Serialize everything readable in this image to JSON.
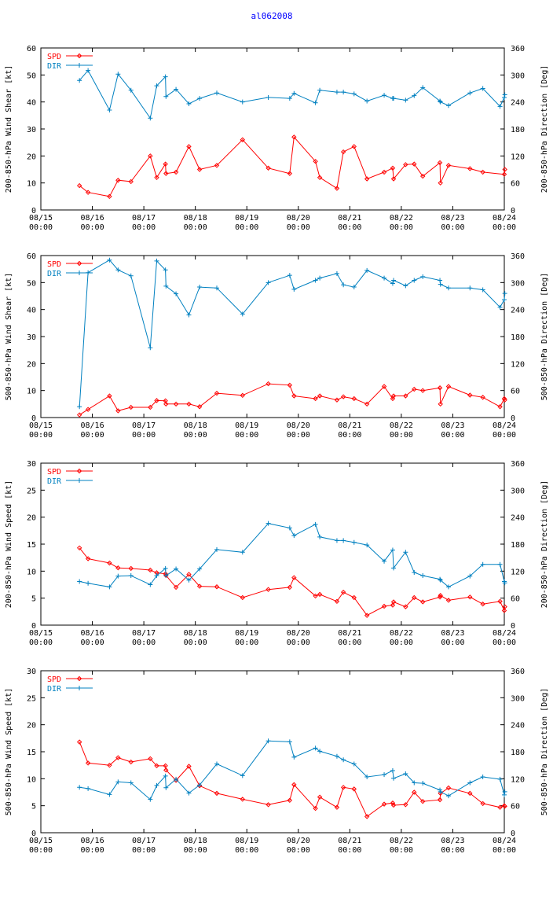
{
  "page_title": "al062008",
  "colors": {
    "spd": "#ff0000",
    "dir": "#0080c0",
    "axis": "#000000",
    "title": "#0000ff"
  },
  "legend": {
    "spd": "SPD",
    "dir": "DIR"
  },
  "x_axis": {
    "ticks": [
      0,
      1,
      2,
      3,
      4,
      5,
      6,
      7,
      8,
      9
    ],
    "tick_labels": [
      [
        "08/15",
        "00:00"
      ],
      [
        "08/16",
        "00:00"
      ],
      [
        "08/17",
        "00:00"
      ],
      [
        "08/18",
        "00:00"
      ],
      [
        "08/19",
        "00:00"
      ],
      [
        "08/20",
        "00:00"
      ],
      [
        "08/21",
        "00:00"
      ],
      [
        "08/22",
        "00:00"
      ],
      [
        "08/23",
        "00:00"
      ],
      [
        "08/24",
        "00:00"
      ]
    ],
    "range": [
      0,
      9
    ],
    "units": "days since 08/15 00:00"
  },
  "chart_data": [
    {
      "type": "line",
      "ylabel": "200-850-hPa Wind Shear [kt]",
      "y2label": "200-850-hPa Direction [Deg]",
      "ylim": [
        0,
        60
      ],
      "yticks": [
        0,
        10,
        20,
        30,
        40,
        50,
        60
      ],
      "y2lim": [
        0,
        360
      ],
      "y2ticks": [
        0,
        60,
        120,
        180,
        240,
        300,
        360
      ],
      "series": [
        {
          "name": "SPD",
          "axis": "left",
          "x": [
            0.75,
            0.917,
            1.333,
            1.5,
            1.75,
            2.125,
            2.25,
            2.42,
            2.43,
            2.625,
            2.875,
            3.083,
            3.417,
            3.917,
            4.417,
            4.833,
            4.917,
            5.333,
            5.417,
            5.75,
            5.875,
            6.083,
            6.333,
            6.667,
            6.833,
            6.85,
            7.083,
            7.25,
            7.417,
            7.75,
            7.76,
            7.917,
            8.333,
            8.583,
            9.0,
            9.01
          ],
          "values": [
            9,
            6.5,
            5,
            11,
            10.5,
            20,
            12,
            17,
            13.5,
            14,
            23.5,
            15,
            16.5,
            26,
            15.5,
            13.5,
            27,
            18,
            12,
            8,
            21.5,
            23.5,
            11.5,
            14,
            15.5,
            11.5,
            16.8,
            17,
            12.5,
            17.5,
            10,
            16.5,
            15.3,
            14,
            13.2,
            15
          ]
        },
        {
          "name": "DIR",
          "axis": "right",
          "x": [
            0.75,
            0.917,
            1.333,
            1.5,
            1.75,
            2.125,
            2.25,
            2.42,
            2.43,
            2.625,
            2.875,
            3.083,
            3.417,
            3.917,
            4.417,
            4.833,
            4.917,
            5.333,
            5.417,
            5.75,
            5.875,
            6.083,
            6.333,
            6.667,
            6.833,
            6.85,
            7.083,
            7.25,
            7.417,
            7.75,
            7.76,
            7.917,
            8.333,
            8.583,
            8.917,
            9.0,
            9.01
          ],
          "values": [
            288,
            310,
            222,
            302,
            266,
            204,
            276,
            296,
            252,
            268,
            236,
            248,
            260,
            240,
            250,
            248,
            259,
            238,
            266,
            262,
            262,
            258,
            242,
            255,
            248,
            248,
            244,
            254,
            272,
            242,
            240,
            232,
            260,
            270,
            230,
            250,
            256
          ]
        }
      ]
    },
    {
      "type": "line",
      "ylabel": "500-850-hPa Wind Shear [kt]",
      "y2label": "500-850-hPa Direction [Deg]",
      "ylim": [
        0,
        60
      ],
      "yticks": [
        0,
        10,
        20,
        30,
        40,
        50,
        60
      ],
      "y2lim": [
        0,
        360
      ],
      "y2ticks": [
        0,
        60,
        120,
        180,
        240,
        300,
        360
      ],
      "series": [
        {
          "name": "SPD",
          "axis": "left",
          "x": [
            0.75,
            0.917,
            1.333,
            1.5,
            1.75,
            2.125,
            2.25,
            2.42,
            2.43,
            2.625,
            2.875,
            3.083,
            3.417,
            3.917,
            4.417,
            4.833,
            4.917,
            5.333,
            5.417,
            5.75,
            5.875,
            6.083,
            6.333,
            6.667,
            6.833,
            6.85,
            7.083,
            7.25,
            7.417,
            7.75,
            7.76,
            7.917,
            8.333,
            8.583,
            8.917,
            9.0,
            9.01
          ],
          "values": [
            1,
            3,
            8,
            2.5,
            3.8,
            3.8,
            6.3,
            6.2,
            5,
            5,
            5,
            4,
            9,
            8.2,
            12.5,
            12,
            8,
            7,
            8,
            6.5,
            7.7,
            7,
            5,
            11.5,
            7,
            8,
            8,
            10.5,
            10,
            11,
            5,
            11.5,
            8.3,
            7.5,
            4,
            7,
            6.5
          ]
        },
        {
          "name": "DIR",
          "axis": "right",
          "x": [
            0.75,
            0.917,
            1.333,
            1.5,
            1.75,
            2.125,
            2.25,
            2.42,
            2.43,
            2.625,
            2.875,
            3.083,
            3.417,
            3.917,
            4.417,
            4.833,
            4.917,
            5.333,
            5.417,
            5.75,
            5.875,
            6.083,
            6.333,
            6.667,
            6.833,
            6.85,
            7.083,
            7.25,
            7.417,
            7.75,
            7.76,
            7.917,
            8.333,
            8.583,
            8.917,
            9.0,
            9.01
          ],
          "values": [
            24,
            322,
            350,
            328,
            315,
            155,
            348,
            328,
            292,
            275,
            228,
            290,
            288,
            230,
            300,
            316,
            285,
            305,
            310,
            320,
            295,
            290,
            327,
            310,
            298,
            305,
            293,
            305,
            313,
            305,
            296,
            288,
            288,
            284,
            245,
            262,
            276
          ]
        }
      ]
    },
    {
      "type": "line",
      "ylabel": "200-850-hPa Wind Speed [kt]",
      "y2label": "200-850-hPa Direction [Deg]",
      "ylim": [
        0,
        30
      ],
      "yticks": [
        0,
        5,
        10,
        15,
        20,
        25,
        30
      ],
      "y2lim": [
        0,
        360
      ],
      "y2ticks": [
        0,
        60,
        120,
        180,
        240,
        300,
        360
      ],
      "series": [
        {
          "name": "SPD",
          "axis": "left",
          "x": [
            0.75,
            0.917,
            1.333,
            1.5,
            1.75,
            2.125,
            2.25,
            2.42,
            2.43,
            2.625,
            2.875,
            3.083,
            3.417,
            3.917,
            4.417,
            4.833,
            4.917,
            5.333,
            5.417,
            5.75,
            5.875,
            6.083,
            6.333,
            6.667,
            6.833,
            6.85,
            7.083,
            7.25,
            7.417,
            7.75,
            7.76,
            7.917,
            8.333,
            8.583,
            8.917,
            9.0,
            9.01
          ],
          "values": [
            14.3,
            12.3,
            11.5,
            10.6,
            10.5,
            10.2,
            9.7,
            9.5,
            9.2,
            7,
            9.4,
            7.2,
            7.1,
            5.1,
            6.6,
            7,
            8.8,
            5.4,
            5.7,
            4.4,
            6.1,
            5.1,
            1.8,
            3.5,
            3.7,
            4.3,
            3.4,
            5.1,
            4.3,
            5.2,
            5.5,
            4.6,
            5.2,
            3.9,
            4.4,
            2.7,
            3.4
          ]
        },
        {
          "name": "DIR",
          "axis": "right",
          "x": [
            0.75,
            0.917,
            1.333,
            1.5,
            1.75,
            2.125,
            2.25,
            2.42,
            2.43,
            2.625,
            2.875,
            3.083,
            3.417,
            3.917,
            4.417,
            4.833,
            4.917,
            5.333,
            5.417,
            5.75,
            5.875,
            6.083,
            6.333,
            6.667,
            6.833,
            6.85,
            7.083,
            7.25,
            7.417,
            7.75,
            7.76,
            7.917,
            8.333,
            8.583,
            8.917,
            9.0,
            9.01
          ],
          "values": [
            97,
            93,
            85,
            109,
            110,
            90,
            110,
            126,
            110,
            125,
            100,
            125,
            168,
            162,
            226,
            216,
            199,
            224,
            196,
            188,
            188,
            184,
            178,
            142,
            167,
            127,
            162,
            117,
            110,
            102,
            100,
            85,
            109,
            135,
            135,
            97,
            94
          ]
        }
      ]
    },
    {
      "type": "line",
      "ylabel": "500-850-hPa Wind Speed [kt]",
      "y2label": "500-850-hPa Direction [Deg]",
      "ylim": [
        0,
        30
      ],
      "yticks": [
        0,
        5,
        10,
        15,
        20,
        25,
        30
      ],
      "y2lim": [
        0,
        360
      ],
      "y2ticks": [
        0,
        60,
        120,
        180,
        240,
        300,
        360
      ],
      "series": [
        {
          "name": "SPD",
          "axis": "left",
          "x": [
            0.75,
            0.917,
            1.333,
            1.5,
            1.75,
            2.125,
            2.25,
            2.42,
            2.43,
            2.625,
            2.875,
            3.083,
            3.417,
            3.917,
            4.417,
            4.833,
            4.917,
            5.333,
            5.417,
            5.75,
            5.875,
            6.083,
            6.333,
            6.667,
            6.833,
            6.85,
            7.083,
            7.25,
            7.417,
            7.75,
            7.76,
            7.917,
            8.333,
            8.583,
            8.917,
            9.0,
            9.01
          ],
          "values": [
            16.8,
            12.9,
            12.5,
            13.9,
            13.1,
            13.7,
            12.4,
            12.4,
            11.6,
            9.7,
            12.3,
            8.7,
            7.3,
            6.2,
            5.2,
            6,
            8.9,
            4.5,
            6.6,
            4.7,
            8.4,
            8.1,
            3,
            5.3,
            5.5,
            5.1,
            5.2,
            7.5,
            5.8,
            6.1,
            7.3,
            8.3,
            7.3,
            5.4,
            4.7,
            5,
            4.9
          ]
        },
        {
          "name": "DIR",
          "axis": "right",
          "x": [
            0.75,
            0.917,
            1.333,
            1.5,
            1.75,
            2.125,
            2.25,
            2.42,
            2.43,
            2.625,
            2.875,
            3.083,
            3.417,
            3.917,
            4.417,
            4.833,
            4.917,
            5.333,
            5.417,
            5.75,
            5.875,
            6.083,
            6.333,
            6.667,
            6.833,
            6.85,
            7.083,
            7.25,
            7.417,
            7.75,
            7.76,
            7.917,
            8.333,
            8.583,
            8.917,
            9.0,
            9.01
          ],
          "values": [
            101,
            98,
            85,
            113,
            111,
            74,
            105,
            126,
            100,
            119,
            88,
            106,
            153,
            127,
            204,
            202,
            168,
            188,
            181,
            170,
            162,
            153,
            124,
            129,
            138,
            121,
            131,
            111,
            110,
            95,
            91,
            82,
            111,
            124,
            119,
            84,
            91
          ]
        }
      ]
    }
  ]
}
